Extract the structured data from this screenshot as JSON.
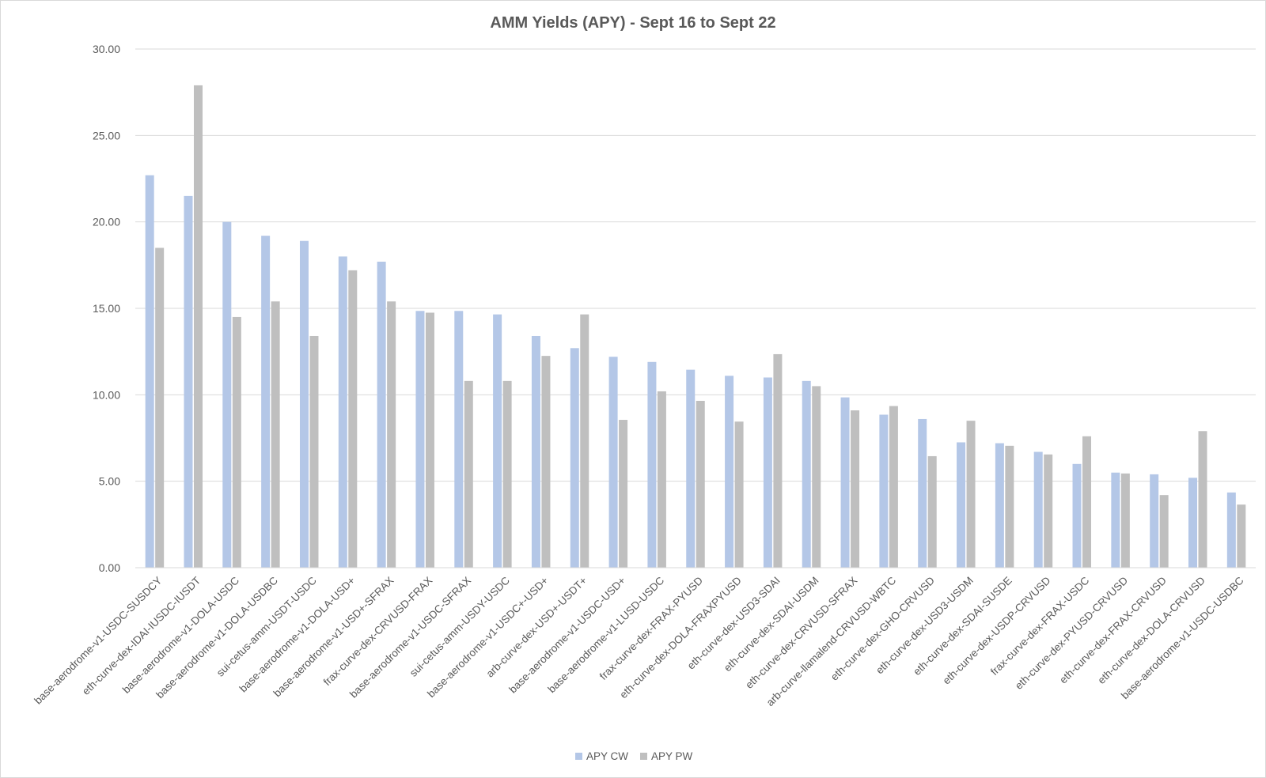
{
  "chart_data": {
    "type": "bar",
    "title": "AMM Yields (APY) - Sept 16 to Sept 22",
    "xlabel": "",
    "ylabel": "",
    "ylim": [
      0,
      30
    ],
    "yticks": [
      "0.00",
      "5.00",
      "10.00",
      "15.00",
      "20.00",
      "25.00",
      "30.00"
    ],
    "grid": true,
    "legend_position": "bottom",
    "colors": {
      "APY CW": "#b4c7e7",
      "APY PW": "#bfbfbf",
      "grid": "#d9d9d9",
      "axis": "#d9d9d9",
      "text": "#595959"
    },
    "categories": [
      "base-aerodrome-v1-USDC-SUSDCY",
      "eth-curve-dex-IDAI-IUSDC-IUSDT",
      "base-aerodrome-v1-DOLA-USDC",
      "base-aerodrome-v1-DOLA-USDBC",
      "sui-cetus-amm-USDT-USDC",
      "base-aerodrome-v1-DOLA-USD+",
      "base-aerodrome-v1-USD+-SFRAX",
      "frax-curve-dex-CRVUSD-FRAX",
      "base-aerodrome-v1-USDC-SFRAX",
      "sui-cetus-amm-USDY-USDC",
      "base-aerodrome-v1-USDC+-USD+",
      "arb-curve-dex-USD+-USDT+",
      "base-aerodrome-v1-USDC-USD+",
      "base-aerodrome-v1-LUSD-USDC",
      "frax-curve-dex-FRAX-PYUSD",
      "eth-curve-dex-DOLA-FRAXPYUSD",
      "eth-curve-dex-USD3-SDAI",
      "eth-curve-dex-SDAI-USDM",
      "eth-curve-dex-CRVUSD-SFRAX",
      "arb-curve-llamalend-CRVUSD-WBTC",
      "eth-curve-dex-GHO-CRVUSD",
      "eth-curve-dex-USD3-USDM",
      "eth-curve-dex-SDAI-SUSDE",
      "eth-curve-dex-USDP-CRVUSD",
      "frax-curve-dex-FRAX-USDC",
      "eth-curve-dex-PYUSD-CRVUSD",
      "eth-curve-dex-FRAX-CRVUSD",
      "eth-curve-dex-DOLA-CRVUSD",
      "base-aerodrome-v1-USDC-USDBC"
    ],
    "series": [
      {
        "name": "APY CW",
        "values": [
          22.7,
          21.5,
          20.0,
          19.2,
          18.9,
          18.0,
          17.7,
          14.85,
          14.85,
          14.65,
          13.4,
          12.7,
          12.2,
          11.9,
          11.45,
          11.1,
          11.0,
          10.8,
          9.85,
          8.85,
          8.6,
          7.25,
          7.2,
          6.7,
          6.0,
          5.5,
          5.4,
          5.2,
          4.35
        ]
      },
      {
        "name": "APY PW",
        "values": [
          18.5,
          27.9,
          14.5,
          15.4,
          13.4,
          17.2,
          15.4,
          14.75,
          10.8,
          10.8,
          12.25,
          14.65,
          8.55,
          10.2,
          9.65,
          8.45,
          12.35,
          10.5,
          9.1,
          9.35,
          6.45,
          8.5,
          7.05,
          6.55,
          7.6,
          5.45,
          4.2,
          7.9,
          3.65
        ]
      }
    ]
  }
}
